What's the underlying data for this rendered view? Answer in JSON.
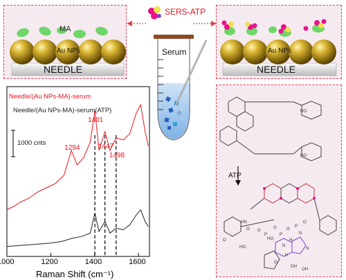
{
  "top_left": {
    "ma_label": "MA",
    "au_label": "Au NPs",
    "needle_label": "NEEDLE"
  },
  "top_right": {
    "au_label": "Au NPs",
    "needle_label": "NEEDLE"
  },
  "center": {
    "sers_label": "SERS-ATP",
    "serum_label": "Serum"
  },
  "chart_data": {
    "type": "line",
    "xlabel": "Raman Shift (cm⁻¹)",
    "x_ticks": [
      1000,
      1200,
      1400,
      1600
    ],
    "xlim": [
      1000,
      1650
    ],
    "scale_bar_label": "1000 cnts",
    "series": [
      {
        "name": "Needle/(Au NPs-MA)-serum",
        "color": "#e8131b",
        "x": [
          1000,
          1030,
          1060,
          1100,
          1140,
          1180,
          1220,
          1260,
          1294,
          1320,
          1350,
          1380,
          1401,
          1420,
          1447,
          1470,
          1498,
          1530,
          1560,
          1590,
          1610,
          1630,
          1645
        ],
        "y": [
          0.05,
          0.08,
          0.12,
          0.16,
          0.22,
          0.26,
          0.3,
          0.38,
          0.62,
          0.48,
          0.55,
          0.7,
          1.0,
          0.62,
          0.8,
          0.62,
          0.74,
          0.72,
          0.78,
          0.98,
          1.06,
          0.8,
          0.66
        ]
      },
      {
        "name": "Needle/(Au NPs-MA)-serum(ATP)",
        "color": "#222222",
        "x": [
          1000,
          1050,
          1100,
          1150,
          1200,
          1250,
          1300,
          1340,
          1380,
          1401,
          1420,
          1447,
          1470,
          1498,
          1530,
          1560,
          1590,
          1610,
          1630,
          1645
        ],
        "y": [
          0.02,
          0.03,
          0.04,
          0.05,
          0.06,
          0.08,
          0.12,
          0.14,
          0.18,
          0.42,
          0.2,
          0.32,
          0.18,
          0.24,
          0.22,
          0.28,
          0.4,
          0.46,
          0.32,
          0.26
        ]
      }
    ],
    "peaks": [
      {
        "label": "1294",
        "x": 1294,
        "marked": false
      },
      {
        "label": "1401",
        "x": 1401,
        "marked": true
      },
      {
        "label": "1447",
        "x": 1447,
        "marked": true
      },
      {
        "label": "1498",
        "x": 1498,
        "marked": true
      }
    ]
  },
  "right_panel": {
    "arrow_label": "ATP",
    "molecule_labels": [
      "HO",
      "HO",
      "HN",
      "O",
      "O",
      "P",
      "O",
      "P",
      "O",
      "P",
      "O",
      "HO",
      "H",
      "N",
      "N",
      "N",
      "H",
      "O",
      "HO",
      "O",
      "OH",
      "OH"
    ]
  }
}
